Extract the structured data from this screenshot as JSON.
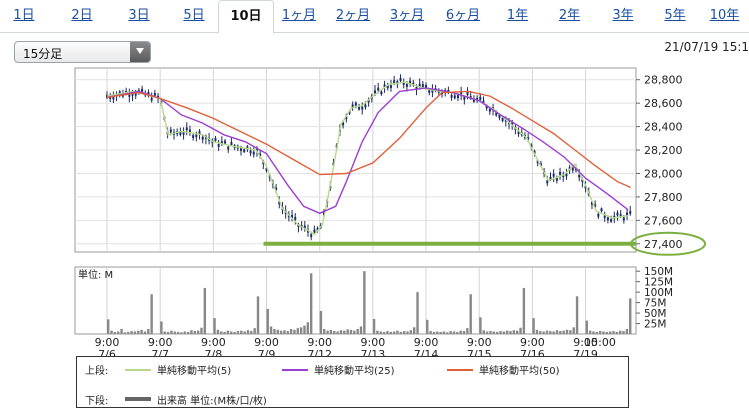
{
  "tabs": [
    {
      "label": "1日",
      "active": false
    },
    {
      "label": "2日",
      "active": false
    },
    {
      "label": "3日",
      "active": false
    },
    {
      "label": "5日",
      "active": false
    },
    {
      "label": "10日",
      "active": true
    },
    {
      "label": "1ヶ月",
      "active": false
    },
    {
      "label": "2ヶ月",
      "active": false
    },
    {
      "label": "3ヶ月",
      "active": false
    },
    {
      "label": "6ヶ月",
      "active": false
    },
    {
      "label": "1年",
      "active": false
    },
    {
      "label": "2年",
      "active": false
    },
    {
      "label": "3年",
      "active": false
    },
    {
      "label": "5年",
      "active": false
    },
    {
      "label": "10年",
      "active": false
    }
  ],
  "interval_select": {
    "value": "15分足"
  },
  "timestamp": "21/07/19 15:1",
  "colors": {
    "ma5": "#b8d98a",
    "ma25": "#9b3fd1",
    "ma50": "#e0603a",
    "support_line": "#7bb040",
    "volume": "#888888",
    "candle": "#1a2a6a"
  },
  "chart_data": [
    {
      "type": "line",
      "panel": "price",
      "x_session_labels": [
        "7/6",
        "7/7",
        "7/8",
        "7/9",
        "7/12",
        "7/13",
        "7/14",
        "7/15",
        "7/16",
        "7/19"
      ],
      "x_ticks": [
        {
          "time": "9:00",
          "date": "7/6"
        },
        {
          "time": "9:00",
          "date": "7/7"
        },
        {
          "time": "9:00",
          "date": "7/8"
        },
        {
          "time": "9:00",
          "date": "7/9"
        },
        {
          "time": "9:00",
          "date": "7/12"
        },
        {
          "time": "9:00",
          "date": "7/13"
        },
        {
          "time": "9:00",
          "date": "7/14"
        },
        {
          "time": "9:00",
          "date": "7/15"
        },
        {
          "time": "9:00",
          "date": "7/16"
        },
        {
          "time": "9:00",
          "date": "7/19"
        },
        {
          "time": "15:00",
          "date": ""
        }
      ],
      "y_ticks": [
        "28,800",
        "28,600",
        "28,400",
        "28,200",
        "28,000",
        "27,800",
        "27,600",
        "27,400"
      ],
      "y_tick_values": [
        28800,
        28600,
        28400,
        28200,
        28000,
        27800,
        27600,
        27400
      ],
      "ylim": [
        27330,
        28900
      ],
      "support_level": 27400,
      "support_label": "27,400",
      "series": [
        {
          "name": "単純移動平均(5)",
          "values": [
            [
              0,
              28660
            ],
            [
              0.5,
              28700
            ],
            [
              1,
              28640
            ],
            [
              1.15,
              28330
            ],
            [
              1.4,
              28360
            ],
            [
              1.8,
              28330
            ],
            [
              2,
              28270
            ],
            [
              2.4,
              28230
            ],
            [
              2.8,
              28200
            ],
            [
              3,
              28060
            ],
            [
              3.3,
              27700
            ],
            [
              3.6,
              27560
            ],
            [
              3.9,
              27480
            ],
            [
              4.05,
              27560
            ],
            [
              4.2,
              27900
            ],
            [
              4.4,
              28420
            ],
            [
              4.6,
              28560
            ],
            [
              4.8,
              28580
            ],
            [
              5,
              28660
            ],
            [
              5.3,
              28760
            ],
            [
              5.6,
              28780
            ],
            [
              6,
              28720
            ],
            [
              6.3,
              28700
            ],
            [
              6.6,
              28680
            ],
            [
              7,
              28620
            ],
            [
              7.3,
              28540
            ],
            [
              7.6,
              28420
            ],
            [
              7.9,
              28300
            ],
            [
              8,
              28200
            ],
            [
              8.3,
              27940
            ],
            [
              8.6,
              27990
            ],
            [
              8.8,
              28080
            ],
            [
              9,
              27900
            ],
            [
              9.2,
              27680
            ],
            [
              9.5,
              27620
            ],
            [
              9.8,
              27640
            ]
          ]
        },
        {
          "name": "単純移動平均(25)",
          "values": [
            [
              0,
              28650
            ],
            [
              0.6,
              28700
            ],
            [
              1,
              28640
            ],
            [
              1.4,
              28500
            ],
            [
              1.8,
              28430
            ],
            [
              2.2,
              28330
            ],
            [
              2.6,
              28270
            ],
            [
              3,
              28170
            ],
            [
              3.4,
              27900
            ],
            [
              3.7,
              27720
            ],
            [
              4,
              27660
            ],
            [
              4.3,
              27720
            ],
            [
              4.5,
              27930
            ],
            [
              4.8,
              28270
            ],
            [
              5.1,
              28520
            ],
            [
              5.5,
              28700
            ],
            [
              6,
              28730
            ],
            [
              6.5,
              28690
            ],
            [
              7,
              28620
            ],
            [
              7.4,
              28500
            ],
            [
              7.8,
              28390
            ],
            [
              8.2,
              28270
            ],
            [
              8.6,
              28140
            ],
            [
              9,
              27960
            ],
            [
              9.4,
              27830
            ],
            [
              9.8,
              27690
            ]
          ]
        },
        {
          "name": "単純移動平均(50)",
          "values": [
            [
              0,
              28650
            ],
            [
              0.6,
              28690
            ],
            [
              1,
              28640
            ],
            [
              1.5,
              28560
            ],
            [
              2,
              28470
            ],
            [
              2.5,
              28360
            ],
            [
              3,
              28250
            ],
            [
              3.5,
              28120
            ],
            [
              4,
              27990
            ],
            [
              4.5,
              28000
            ],
            [
              5,
              28090
            ],
            [
              5.5,
              28300
            ],
            [
              6,
              28560
            ],
            [
              6.3,
              28690
            ],
            [
              6.8,
              28700
            ],
            [
              7.2,
              28660
            ],
            [
              7.6,
              28560
            ],
            [
              8,
              28450
            ],
            [
              8.4,
              28340
            ],
            [
              8.8,
              28200
            ],
            [
              9.2,
              28060
            ],
            [
              9.6,
              27930
            ],
            [
              9.85,
              27880
            ]
          ]
        }
      ]
    },
    {
      "type": "bar",
      "panel": "volume",
      "unit_label": "単位: M",
      "y_ticks": [
        "150M",
        "125M",
        "100M",
        "75M",
        "50M",
        "25M"
      ],
      "y_tick_values": [
        150,
        125,
        100,
        75,
        50,
        25
      ],
      "ylim": [
        0,
        160
      ],
      "session_values": [
        [
          35,
          8,
          5,
          6,
          12,
          4,
          5,
          7,
          6,
          8,
          10,
          6,
          12,
          95
        ],
        [
          30,
          6,
          5,
          8,
          6,
          5,
          4,
          6,
          5,
          9,
          7,
          8,
          15,
          110
        ],
        [
          38,
          10,
          6,
          5,
          8,
          6,
          5,
          7,
          8,
          6,
          9,
          7,
          14,
          90
        ],
        [
          60,
          18,
          12,
          10,
          8,
          9,
          7,
          12,
          10,
          14,
          16,
          20,
          28,
          145
        ],
        [
          55,
          12,
          8,
          10,
          7,
          6,
          9,
          8,
          11,
          10,
          8,
          12,
          18,
          150
        ],
        [
          36,
          8,
          6,
          5,
          7,
          5,
          6,
          8,
          5,
          7,
          6,
          9,
          16,
          100
        ],
        [
          34,
          7,
          5,
          6,
          5,
          6,
          4,
          7,
          6,
          5,
          8,
          7,
          14,
          95
        ],
        [
          40,
          9,
          6,
          7,
          6,
          5,
          7,
          6,
          8,
          7,
          9,
          8,
          15,
          110
        ],
        [
          38,
          10,
          7,
          6,
          8,
          7,
          6,
          9,
          7,
          8,
          10,
          9,
          16,
          90
        ],
        [
          32,
          8,
          6,
          5,
          7,
          6,
          5,
          6,
          7,
          5,
          8,
          7,
          12,
          85
        ]
      ],
      "series": [
        {
          "name": "出来高 単位:(M株/口/枚)"
        }
      ]
    }
  ],
  "legend": {
    "upper_label": "上段:",
    "lower_label": "下段:",
    "items": [
      "単純移動平均(5)",
      "単純移動平均(25)",
      "単純移動平均(50)"
    ],
    "volume_item": "出来高 単位:(M株/口/枚)"
  }
}
